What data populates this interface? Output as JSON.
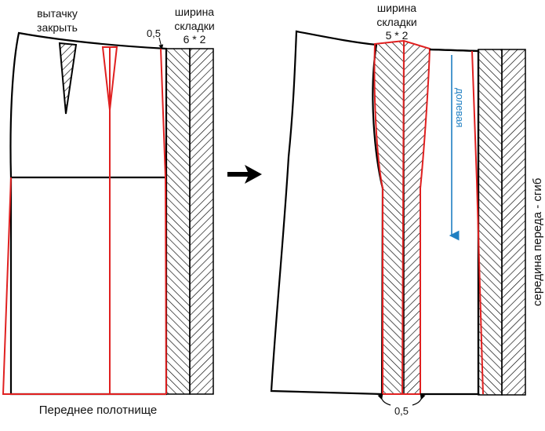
{
  "labels": {
    "close_dart": [
      "вытачку",
      "закрыть"
    ],
    "pleat_width_left": [
      "ширина",
      "складки",
      "6 * 2"
    ],
    "offset_top": "0,5",
    "caption": "Переднее полотнище",
    "pleat_width_right": [
      "ширина",
      "складки",
      "5 * 2"
    ],
    "grain": "долевая",
    "offset_bottom": "0,5",
    "center_front": "середина переда - сгиб"
  },
  "colors": {
    "outline": "#000000",
    "construction": "#e02020",
    "grain_arrow": "#1f7fc2",
    "background": "#ffffff"
  },
  "icons": {
    "transform_arrow": "right-arrow-icon"
  }
}
